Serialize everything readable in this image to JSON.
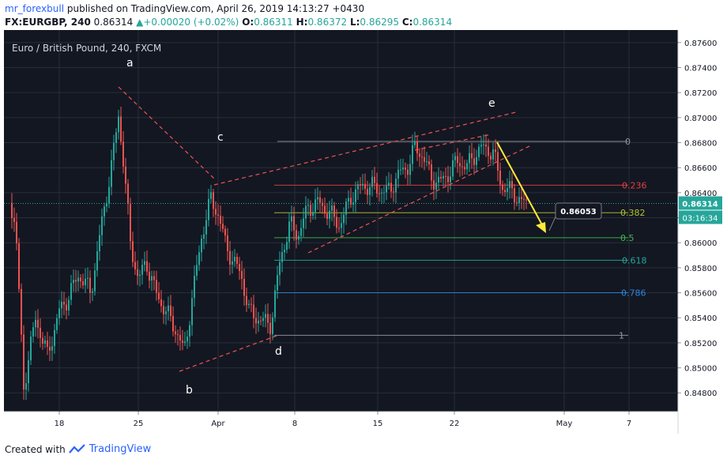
{
  "header": {
    "author": "mr_forexbull",
    "published_text": "published on TradingView.com, April 26, 2019 14:13:27 +0430",
    "symbol": "FX:EURGBP, 240",
    "last": "0.86314",
    "change": "+0.00020 (+0.02%)",
    "o_label": "O:",
    "o": "0.86311",
    "h_label": "H:",
    "h": "0.86372",
    "l_label": "L:",
    "l": "0.86295",
    "c_label": "C:",
    "c": "0.86314"
  },
  "chart_data": {
    "type": "candlestick",
    "title": "Euro / British Pound, 240, FXCM",
    "ylim": [
      0.8465,
      0.877
    ],
    "y_ticks": [
      "0.87600",
      "0.87400",
      "0.87200",
      "0.87000",
      "0.86800",
      "0.86600",
      "0.86400",
      "0.86200",
      "0.86000",
      "0.85800",
      "0.85600",
      "0.85400",
      "0.85200",
      "0.85000",
      "0.84800"
    ],
    "x_ticks": [
      "18",
      "25",
      "Apr",
      "8",
      "15",
      "22",
      "May",
      "7"
    ],
    "current_price": "0.86314",
    "countdown": "03:16:34",
    "target_price_label": "0.86053",
    "wave_labels": [
      "a",
      "b",
      "c",
      "d",
      "e"
    ],
    "fib_levels": [
      {
        "label": "0",
        "price": 0.8681,
        "color": "#9598a1"
      },
      {
        "label": "0.236",
        "price": 0.8646,
        "color": "#e04040"
      },
      {
        "label": "0.382",
        "price": 0.8624,
        "color": "#b5c22a"
      },
      {
        "label": "0.5",
        "price": 0.8604,
        "color": "#3dbb44"
      },
      {
        "label": "0.618",
        "price": 0.8586,
        "color": "#26a69a"
      },
      {
        "label": "0.786",
        "price": 0.856,
        "color": "#2e86de"
      },
      {
        "label": "1",
        "price": 0.8526,
        "color": "#9598a1"
      }
    ],
    "colors": {
      "up": "#26a69a",
      "down": "#ef5350",
      "background": "#131722",
      "grid": "#2a2e39",
      "projection": "#ffeb3b"
    }
  },
  "footer": {
    "created_with": "Created with",
    "brand": "TradingView"
  }
}
